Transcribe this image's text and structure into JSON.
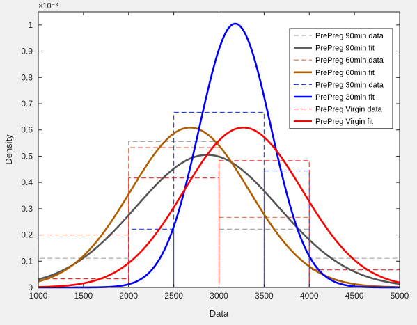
{
  "chart_data": {
    "type": "line",
    "xlabel": "Data",
    "ylabel": "Density",
    "xlim": [
      1000,
      5000
    ],
    "ylim": [
      0,
      0.00105
    ],
    "y_exponent_label": "×10⁻³",
    "xticks": [
      1000,
      1500,
      2000,
      2500,
      3000,
      3500,
      4000,
      4500,
      5000
    ],
    "yticks": [
      0,
      0.1,
      0.2,
      0.3,
      0.4,
      0.5,
      0.6,
      0.7,
      0.8,
      0.9,
      1
    ],
    "legend_position": "top-right",
    "legend": [
      "PrePreg 90min data",
      "PrePreg 90min fit",
      "PrePreg 60min data",
      "PrePreg 60min fit",
      "PrePreg 30min data",
      "PrePreg 30min fit",
      "PrePreg Virgin data",
      "PrePreg Virgin fit"
    ],
    "series": [
      {
        "name": "PrePreg 90min data",
        "kind": "histogram",
        "color": "#999999",
        "bins": [
          [
            1000,
            2000,
            0.000111
          ],
          [
            2000,
            3000,
            0.000556
          ],
          [
            3000,
            4000,
            0.000222
          ],
          [
            4000,
            5000,
            0.000111
          ]
        ]
      },
      {
        "name": "PrePreg 90min fit",
        "kind": "normal",
        "color": "#555555",
        "mean": 2870,
        "sd": 790
      },
      {
        "name": "PrePreg 60min data",
        "kind": "histogram",
        "color": "#e36c4a",
        "bins": [
          [
            1000,
            2000,
            0.0002
          ],
          [
            2000,
            3000,
            0.000533
          ],
          [
            3000,
            4000,
            0.000267
          ],
          [
            4000,
            5000,
            0
          ]
        ]
      },
      {
        "name": "PrePreg 60min fit",
        "kind": "normal",
        "color": "#b05e00",
        "mean": 2680,
        "sd": 655
      },
      {
        "name": "PrePreg 30min data",
        "kind": "histogram",
        "color": "#1f3fff",
        "bins": [
          [
            2000,
            2500,
            0.000222
          ],
          [
            2500,
            3500,
            0.000667
          ],
          [
            3500,
            4000,
            0.000444
          ]
        ]
      },
      {
        "name": "PrePreg 30min fit",
        "kind": "normal",
        "color": "#0000ff",
        "mean": 3180,
        "sd": 397
      },
      {
        "name": "PrePreg Virgin data",
        "kind": "histogram",
        "color": "#ff2020",
        "bins": [
          [
            1000,
            2000,
            3.3e-05
          ],
          [
            2000,
            3000,
            0.000417
          ],
          [
            3000,
            4000,
            0.000483
          ],
          [
            4000,
            5000,
            6.7e-05
          ]
        ]
      },
      {
        "name": "PrePreg Virgin fit",
        "kind": "normal",
        "color": "#ff0000",
        "mean": 3270,
        "sd": 655
      }
    ]
  }
}
